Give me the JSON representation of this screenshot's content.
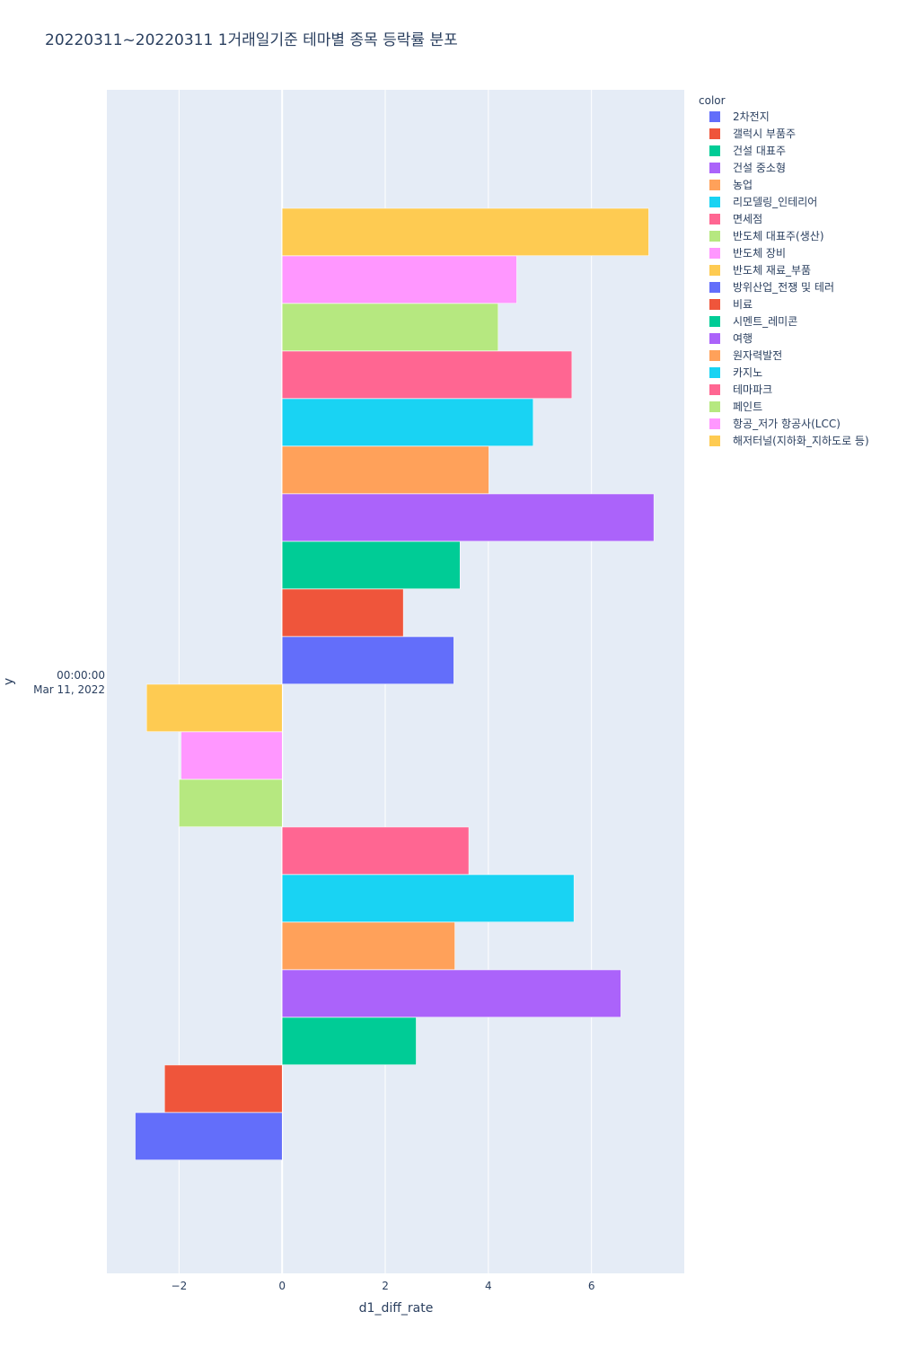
{
  "chart_data": {
    "type": "bar",
    "orientation": "horizontal",
    "barmode": "group",
    "title": "20220311~20220311 1거래일기준 테마별 종목 등락률 분포",
    "xlabel": "d1_diff_rate",
    "ylabel": "y",
    "xlim": [
      -3.4,
      7.8
    ],
    "x_ticks": [
      {
        "value": -2,
        "label": "−2"
      },
      {
        "value": 0,
        "label": "0"
      },
      {
        "value": 2,
        "label": "2"
      },
      {
        "value": 4,
        "label": "4"
      },
      {
        "value": 6,
        "label": "6"
      }
    ],
    "y_tick_lines": [
      "00:00:00",
      "Mar 11, 2022"
    ],
    "legend_title": "color",
    "series": [
      {
        "name": "2차전지",
        "value": -2.85,
        "color": "#636efa"
      },
      {
        "name": "갤럭시 부품주",
        "value": -2.28,
        "color": "#EF553B"
      },
      {
        "name": "건설 대표주",
        "value": 2.6,
        "color": "#00cc96"
      },
      {
        "name": "건설 중소형",
        "value": 6.57,
        "color": "#ab63fa"
      },
      {
        "name": "농업",
        "value": 3.35,
        "color": "#FFA15A"
      },
      {
        "name": "리모델링_인테리어",
        "value": 5.66,
        "color": "#19d3f3"
      },
      {
        "name": "면세점",
        "value": 3.62,
        "color": "#FF6692"
      },
      {
        "name": "반도체 대표주(생산)",
        "value": -2.0,
        "color": "#B6E880"
      },
      {
        "name": "반도체 장비",
        "value": -1.96,
        "color": "#FF97FF"
      },
      {
        "name": "반도체 재료_부품",
        "value": -2.63,
        "color": "#FECB52"
      },
      {
        "name": "방위산업_전쟁 및 테러",
        "value": 3.33,
        "color": "#636efa"
      },
      {
        "name": "비료",
        "value": 2.35,
        "color": "#EF553B"
      },
      {
        "name": "시멘트_레미콘",
        "value": 3.45,
        "color": "#00cc96"
      },
      {
        "name": "여행",
        "value": 7.21,
        "color": "#ab63fa"
      },
      {
        "name": "원자력발전",
        "value": 4.01,
        "color": "#FFA15A"
      },
      {
        "name": "카지노",
        "value": 4.87,
        "color": "#19d3f3"
      },
      {
        "name": "테마파크",
        "value": 5.62,
        "color": "#FF6692"
      },
      {
        "name": "페인트",
        "value": 4.19,
        "color": "#B6E880"
      },
      {
        "name": "항공_저가 항공사(LCC)",
        "value": 4.55,
        "color": "#FF97FF"
      },
      {
        "name": "해저터널(지하화_지하도로 등)",
        "value": 7.11,
        "color": "#FECB52"
      }
    ]
  }
}
